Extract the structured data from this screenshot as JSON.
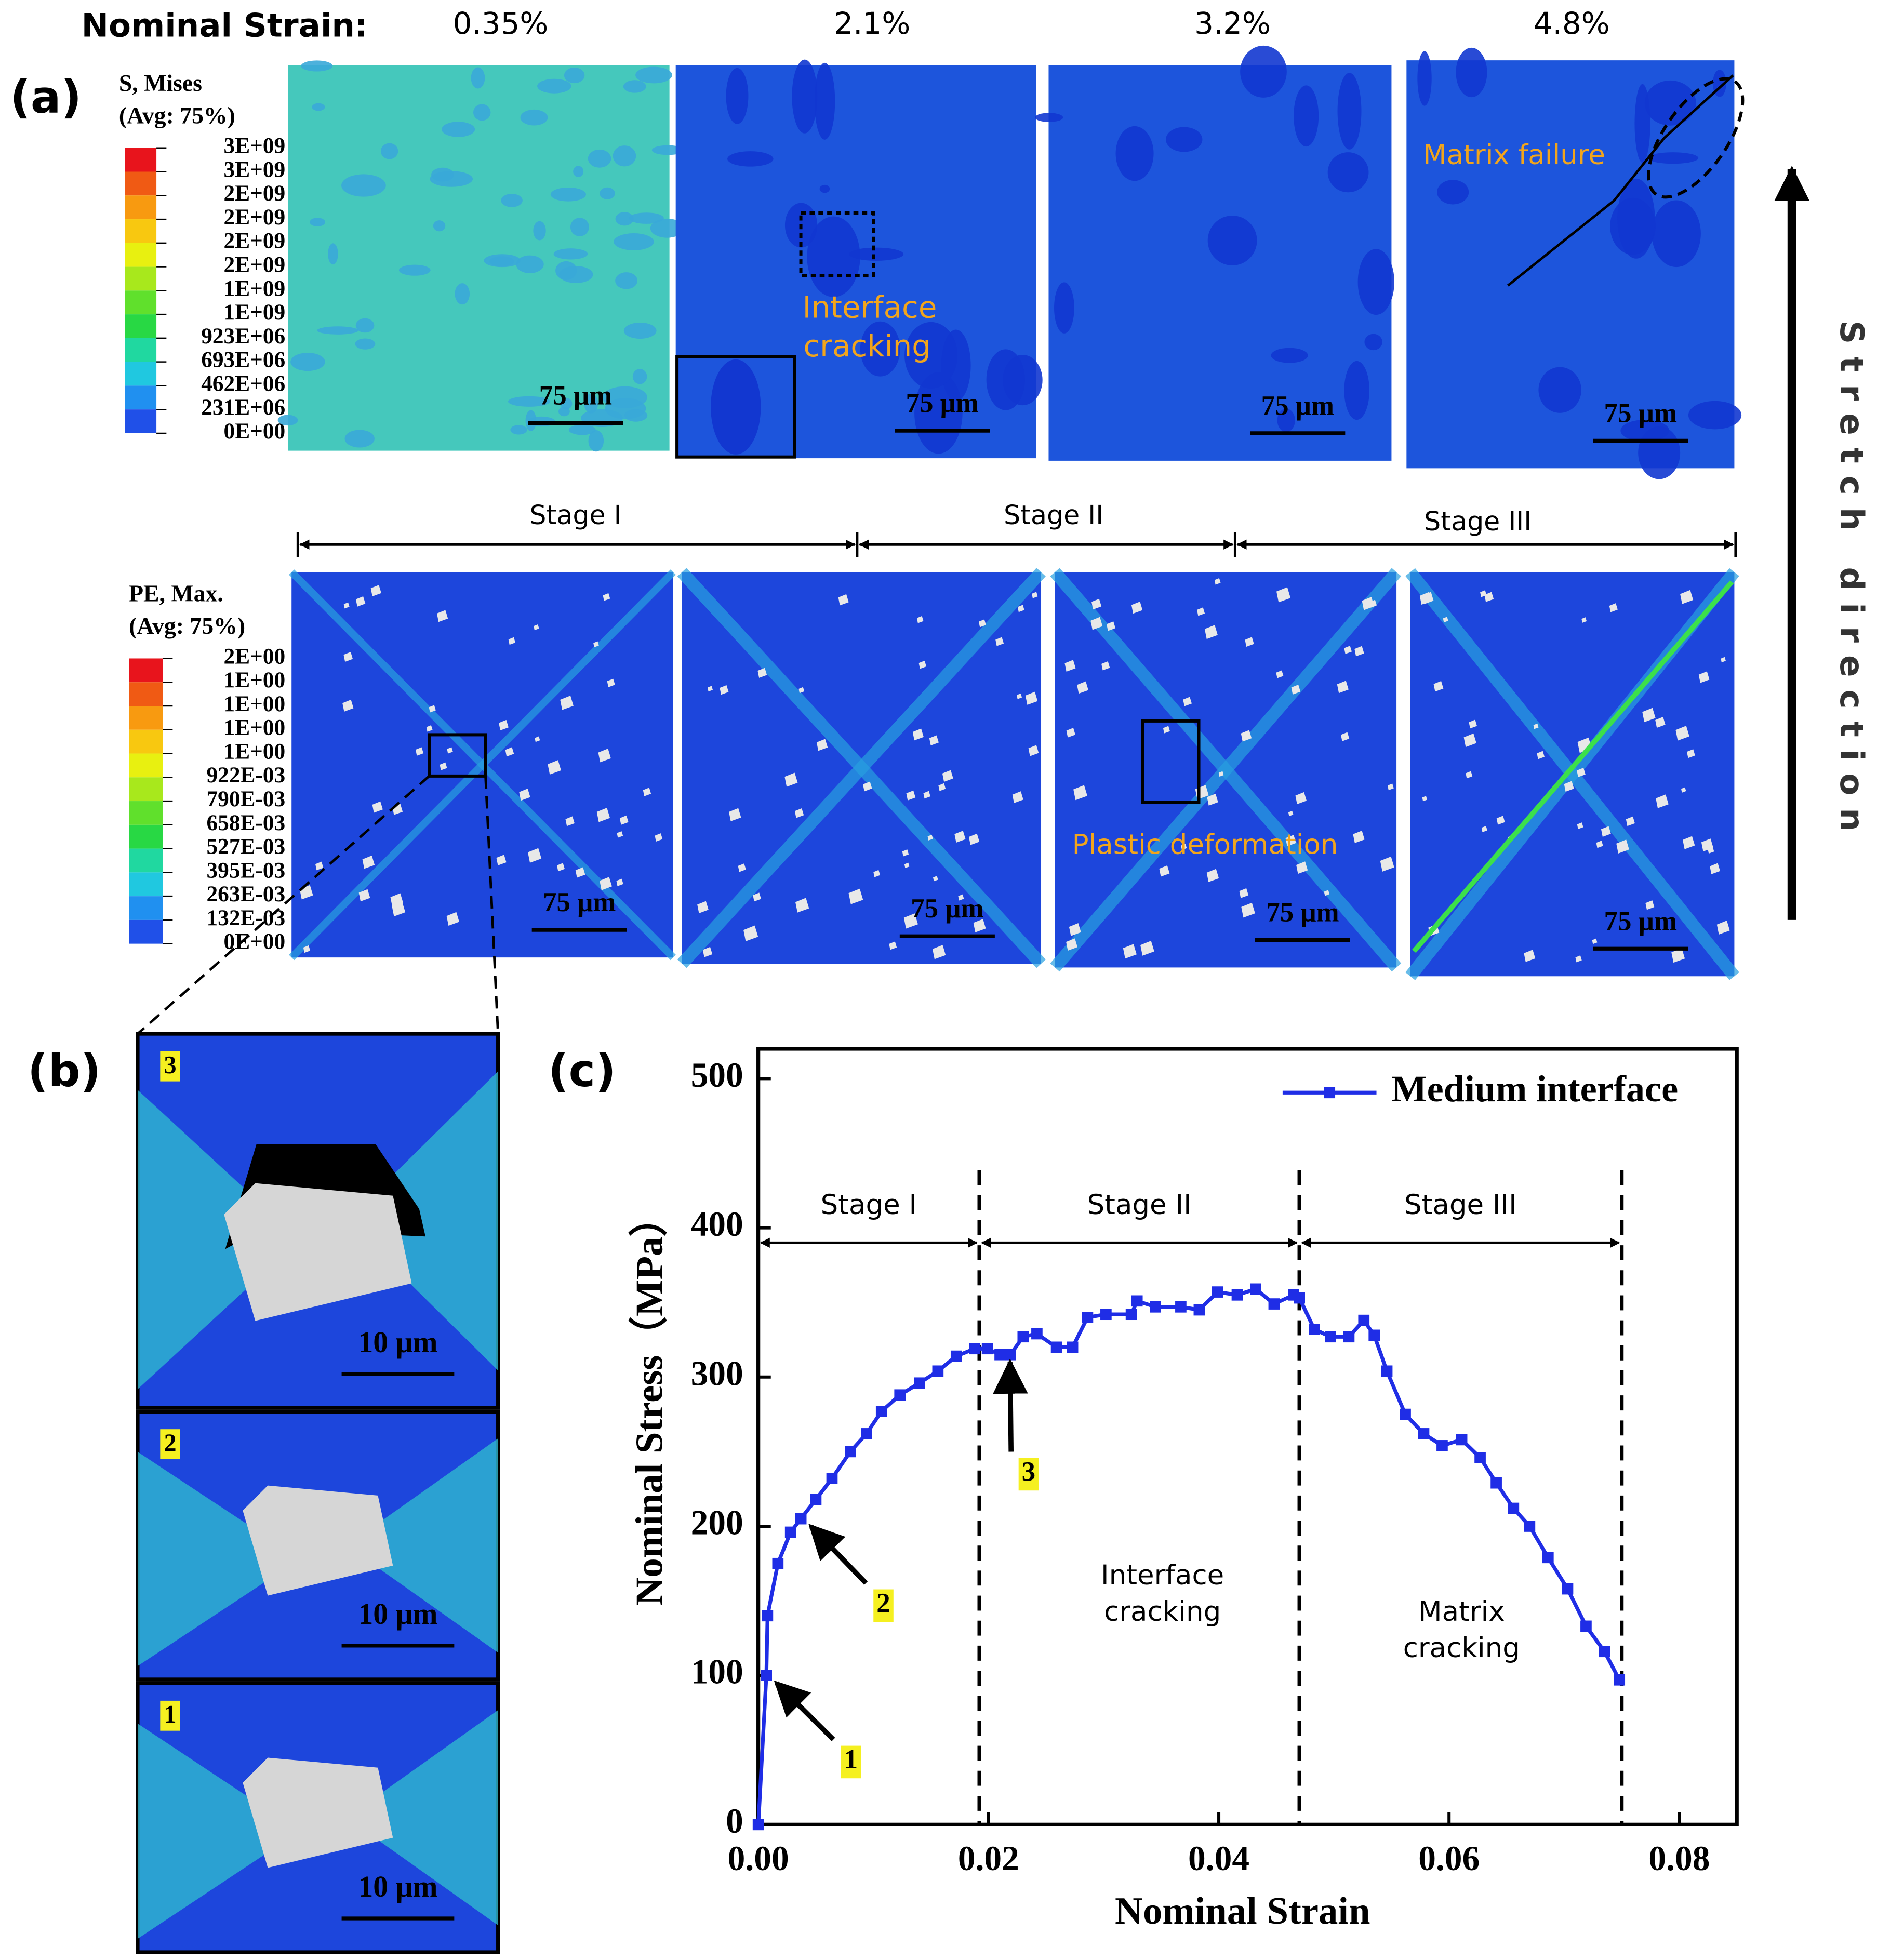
{
  "labels": {
    "a": "(a)",
    "b": "(b)",
    "c": "(c)"
  },
  "panel_a": {
    "strain_label": "Nominal Strain:",
    "strains": [
      "0.35%",
      "2.1%",
      "3.2%",
      "4.8%"
    ],
    "stress_legend": {
      "title": "S, Mises",
      "subtitle": "(Avg: 75%)",
      "levels": [
        "3E+09",
        "3E+09",
        "2E+09",
        "2E+09",
        "2E+09",
        "2E+09",
        "1E+09",
        "1E+09",
        "923E+06",
        "693E+06",
        "462E+06",
        "231E+06",
        "0E+00"
      ],
      "colors": [
        "#e8141c",
        "#f05a14",
        "#f89a10",
        "#f8c810",
        "#e8f010",
        "#a8e81c",
        "#60e02c",
        "#28d844",
        "#20d8a0",
        "#20c8e0",
        "#2090f0",
        "#2050e8"
      ]
    },
    "strain_legend": {
      "title": "PE, Max.",
      "subtitle": "(Avg: 75%)",
      "levels": [
        "2E+00",
        "1E+00",
        "1E+00",
        "1E+00",
        "1E+00",
        "922E-03",
        "790E-03",
        "658E-03",
        "527E-03",
        "395E-03",
        "263E-03",
        "132E-03",
        "0E+00"
      ],
      "colors": [
        "#e8141c",
        "#f05a14",
        "#f89a10",
        "#f8c810",
        "#e8f010",
        "#a8e81c",
        "#60e02c",
        "#28d844",
        "#20d8a0",
        "#20c8e0",
        "#2090f0",
        "#2050e8"
      ]
    },
    "scale_bar": "75 μm",
    "interface_cracking": [
      "Interface",
      "cracking"
    ],
    "matrix_failure": "Matrix failure",
    "plastic_deformation": "Plastic deformation",
    "stages": [
      "Stage I",
      "Stage II",
      "Stage III"
    ],
    "direction": "Stretch direction"
  },
  "panel_b": {
    "steps": [
      "3",
      "2",
      "1"
    ],
    "scale_bar": "10 μm"
  },
  "chart_data": {
    "type": "line",
    "x_label": "Nominal Strain",
    "y_label": "Nominal Stress（MPa）",
    "xlim": [
      0,
      0.085
    ],
    "ylim": [
      0,
      520
    ],
    "xticks": [
      {
        "value": 0,
        "label": "0.00"
      },
      {
        "value": 0.02,
        "label": "0.02"
      },
      {
        "value": 0.04,
        "label": "0.04"
      },
      {
        "value": 0.06,
        "label": "0.06"
      },
      {
        "value": 0.08,
        "label": "0.08"
      }
    ],
    "yticks": [
      0,
      100,
      200,
      300,
      400,
      500
    ],
    "legend": "upper right",
    "x": [
      0,
      0.0007,
      0.0008,
      0.0017,
      0.0028,
      0.0037,
      0.005,
      0.0064,
      0.008,
      0.0094,
      0.0107,
      0.0123,
      0.014,
      0.0156,
      0.0172,
      0.0188,
      0.0199,
      0.021,
      0.0219,
      0.023,
      0.0242,
      0.0259,
      0.0273,
      0.0286,
      0.0302,
      0.0324,
      0.0329,
      0.0345,
      0.0367,
      0.0383,
      0.0399,
      0.0416,
      0.0432,
      0.0448,
      0.0465,
      0.047,
      0.0483,
      0.0497,
      0.0513,
      0.0526,
      0.0535,
      0.0546,
      0.0562,
      0.0578,
      0.0594,
      0.0611,
      0.0627,
      0.0641,
      0.0656,
      0.067,
      0.0686,
      0.0703,
      0.0719,
      0.0735,
      0.0748
    ],
    "series": [
      {
        "name": "Medium interface",
        "color": "#1f2de6",
        "values": [
          0,
          100,
          140,
          175,
          196,
          205,
          218,
          232,
          250,
          262,
          277,
          288,
          296,
          304,
          314,
          319,
          319,
          315,
          315,
          327,
          329,
          320,
          320,
          340,
          342,
          342,
          351,
          347,
          347,
          345,
          357,
          355,
          359,
          349,
          355,
          353,
          332,
          327,
          327,
          338,
          328,
          304,
          275,
          262,
          254,
          258,
          246,
          229,
          212,
          200,
          179,
          158,
          133,
          116,
          97
        ]
      }
    ],
    "stages": [
      {
        "label": "Stage I",
        "start": 0,
        "end": 0.0192
      },
      {
        "label": "Stage II",
        "start": 0.0192,
        "end": 0.047
      },
      {
        "label": "Stage III",
        "start": 0.047,
        "end": 0.075
      }
    ],
    "annotations": {
      "interface": [
        "Interface",
        "cracking"
      ],
      "matrix": [
        "Matrix",
        "cracking"
      ],
      "points": [
        "1",
        "2",
        "3"
      ]
    }
  }
}
